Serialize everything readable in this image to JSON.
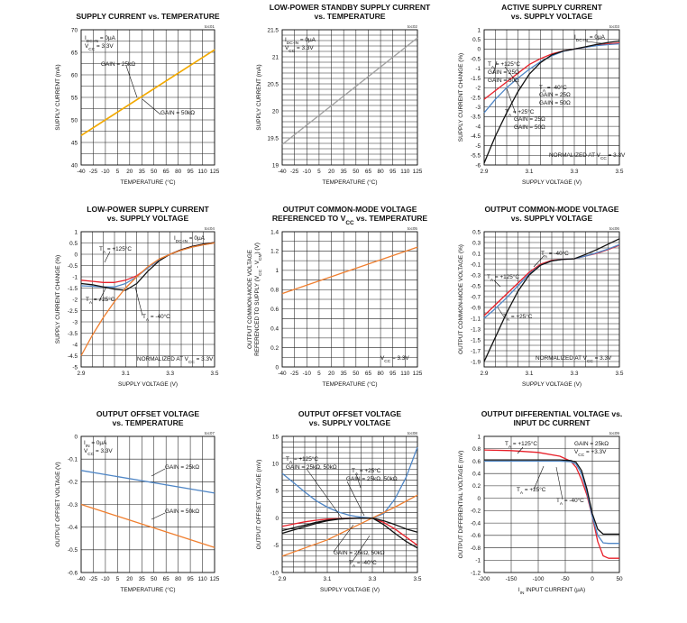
{
  "chart_data": [
    {
      "type": "line",
      "code": "toc01",
      "title": [
        "SUPPLY CURRENT vs. TEMPERATURE"
      ],
      "xlabel": "TEMPERATURE (°C)",
      "ylabel": "SUPPLY CURRENT (mA)",
      "xlim": [
        -40,
        125
      ],
      "ylim": [
        40,
        70
      ],
      "xticks": [
        -40,
        -25,
        -10,
        5,
        20,
        35,
        50,
        65,
        80,
        95,
        110,
        125
      ],
      "yticks": [
        40,
        45,
        50,
        55,
        60,
        65,
        70
      ],
      "annotations": [
        "I_DC-IN = 0µA",
        "V_CC = 3.3V",
        "GAIN = 25kΩ",
        "GAIN = 50kΩ"
      ],
      "series": [
        {
          "name": "GAIN = 25kΩ",
          "color": "#f2a900",
          "x": [
            -40,
            125
          ],
          "y": [
            46.5,
            65.5
          ]
        },
        {
          "name": "GAIN = 50kΩ",
          "color": "#f2a900",
          "x": [
            -40,
            125
          ],
          "y": [
            46.6,
            65.6
          ]
        }
      ]
    },
    {
      "type": "line",
      "code": "toc02",
      "title": [
        "LOW-POWER STANDBY SUPPLY CURRENT",
        "vs. TEMPERATURE"
      ],
      "xlabel": "TEMPERATURE (°C)",
      "ylabel": "SUPPLY CURRENT (mA)",
      "xlim": [
        -40,
        125
      ],
      "ylim": [
        19,
        21.5
      ],
      "xticks": [
        -40,
        -25,
        -10,
        5,
        20,
        35,
        50,
        65,
        80,
        95,
        110,
        125
      ],
      "yticks": [
        19,
        19.5,
        20,
        20.5,
        21,
        21.5
      ],
      "annotations": [
        "I_DC-IN = 0µA",
        "V_CC = 3.3V"
      ],
      "series": [
        {
          "color": "#a0a0a0",
          "x": [
            -40,
            125
          ],
          "y": [
            19.38,
            21.35
          ]
        }
      ]
    },
    {
      "type": "line",
      "code": "toc03",
      "title": [
        "ACTIVE SUPPLY CURRENT",
        "vs. SUPPLY VOLTAGE"
      ],
      "xlabel": "SUPPLY VOLTAGE (V)",
      "ylabel": "SUPPLY CURRENT CHANGE (%)",
      "xlim": [
        2.9,
        3.5
      ],
      "ylim": [
        -6,
        1
      ],
      "xticks": [
        2.9,
        3.1,
        3.3,
        3.5
      ],
      "yticks": [
        1,
        0.5,
        0,
        -0.5,
        -1,
        -1.5,
        -2,
        -2.5,
        -3,
        -3.5,
        -4,
        -4.5,
        -5,
        -5.5,
        -6
      ],
      "annotations": [
        "T_A = +125°C",
        "GAIN = 25Ω",
        "GAIN = 50Ω",
        "I_DC-IN = 0µA",
        "T_A = -40°C",
        "GAIN = 25Ω",
        "GAIN = 50Ω",
        "T_A = +25°C",
        "GAIN = 25Ω",
        "GAIN = 50Ω",
        "NORMALIZED AT V_CC = 3.3V"
      ],
      "series": [
        {
          "name": "T_A = +125°C",
          "color": "#e8202a",
          "x": [
            2.9,
            2.95,
            3.0,
            3.05,
            3.1,
            3.15,
            3.2,
            3.25,
            3.3,
            3.35,
            3.4,
            3.45,
            3.5
          ],
          "y": [
            -2.6,
            -2.15,
            -1.7,
            -1.25,
            -0.8,
            -0.5,
            -0.25,
            -0.1,
            0,
            0.1,
            0.2,
            0.27,
            0.32
          ]
        },
        {
          "name": "T_A = +25°C",
          "color": "#4f86c6",
          "x": [
            2.9,
            2.95,
            3.0,
            3.05,
            3.1,
            3.15,
            3.2,
            3.25,
            3.3,
            3.35,
            3.4,
            3.45,
            3.5
          ],
          "y": [
            -3.3,
            -2.6,
            -2.0,
            -1.5,
            -1.05,
            -0.65,
            -0.35,
            -0.12,
            0,
            0.1,
            0.18,
            0.23,
            0.27
          ]
        },
        {
          "name": "T_A = -40°C",
          "color": "#111111",
          "x": [
            2.9,
            2.95,
            3.0,
            3.05,
            3.1,
            3.15,
            3.2,
            3.25,
            3.3,
            3.35,
            3.4,
            3.45,
            3.5
          ],
          "y": [
            -5.9,
            -4.5,
            -3.3,
            -2.2,
            -1.3,
            -0.7,
            -0.3,
            -0.1,
            0,
            0.12,
            0.24,
            0.34,
            0.42
          ]
        }
      ]
    },
    {
      "type": "line",
      "code": "toc04",
      "title": [
        "LOW-POWER SUPPLY CURRENT",
        "vs. SUPPLY VOLTAGE"
      ],
      "xlabel": "SUPPLY VOLTAGE (V)",
      "ylabel": "SUPPLY CURRENT CHANGE (%)",
      "xlim": [
        2.9,
        3.5
      ],
      "ylim": [
        -5,
        1
      ],
      "xticks": [
        2.9,
        3.1,
        3.3,
        3.5
      ],
      "yticks": [
        1,
        0.5,
        0,
        -0.5,
        -1,
        -1.5,
        -2,
        -2.5,
        -3,
        -3.5,
        -4,
        -4.5,
        -5
      ],
      "annotations": [
        "I_DC-IN = 0µA",
        "T_A = +125°C",
        "T_A = +25°C",
        "T_A = -40°C",
        "NORMALIZED AT V_CC = 3.3V"
      ],
      "series": [
        {
          "name": "T_A = +125°C",
          "color": "#e8202a",
          "x": [
            2.9,
            2.95,
            3.0,
            3.05,
            3.1,
            3.15,
            3.2,
            3.25,
            3.3,
            3.35,
            3.4,
            3.45,
            3.5
          ],
          "y": [
            -1.15,
            -1.2,
            -1.25,
            -1.25,
            -1.15,
            -0.95,
            -0.6,
            -0.25,
            0,
            0.2,
            0.35,
            0.45,
            0.52
          ]
        },
        {
          "name": "T_A = +25°C",
          "color": "#4f86c6",
          "x": [
            2.9,
            2.95,
            3.0,
            3.05,
            3.1,
            3.15,
            3.2,
            3.25,
            3.3,
            3.35,
            3.4,
            3.45,
            3.5
          ],
          "y": [
            -1.4,
            -1.42,
            -1.45,
            -1.45,
            -1.3,
            -1.0,
            -0.6,
            -0.25,
            0,
            0.18,
            0.32,
            0.42,
            0.5
          ]
        },
        {
          "name": "T_A = -40°C",
          "color": "#111111",
          "x": [
            2.9,
            2.95,
            3.0,
            3.05,
            3.1,
            3.15,
            3.2,
            3.25,
            3.3,
            3.35,
            3.4,
            3.45,
            3.5
          ],
          "y": [
            -1.3,
            -1.35,
            -1.45,
            -1.55,
            -1.6,
            -1.3,
            -0.75,
            -0.3,
            0,
            0.2,
            0.35,
            0.45,
            0.52
          ]
        },
        {
          "color": "#f07f2f",
          "x": [
            2.9,
            2.95,
            3.0,
            3.05,
            3.1,
            3.15,
            3.2,
            3.25,
            3.3,
            3.35,
            3.4,
            3.45,
            3.5
          ],
          "y": [
            -4.5,
            -3.6,
            -2.8,
            -2.1,
            -1.5,
            -1.0,
            -0.55,
            -0.22,
            0,
            0.18,
            0.32,
            0.42,
            0.5
          ]
        }
      ]
    },
    {
      "type": "line",
      "code": "toc05",
      "title": [
        "OUTPUT COMMON-MODE VOLTAGE",
        "REFERENCED TO V_CC vs. TEMPERATURE"
      ],
      "xlabel": "TEMPERATURE (°C)",
      "ylabel": [
        "OUTPUT COMMON-MODE VOLTAGE",
        "REFERENCED TO SUPPLY (V_CC - V_CM) (V)"
      ],
      "xlim": [
        -40,
        125
      ],
      "ylim": [
        0,
        1.4
      ],
      "xticks": [
        -40,
        -25,
        -10,
        5,
        20,
        35,
        50,
        65,
        80,
        95,
        110,
        125
      ],
      "yticks": [
        0,
        0.2,
        0.4,
        0.6,
        0.8,
        1,
        1.2,
        1.4
      ],
      "annotations": [
        "V_CC = 3.3V"
      ],
      "series": [
        {
          "color": "#f07f2f",
          "x": [
            -40,
            125
          ],
          "y": [
            0.76,
            1.24
          ]
        }
      ]
    },
    {
      "type": "line",
      "code": "toc06",
      "title": [
        "OUTPUT COMMON-MODE VOLTAGE",
        "vs. SUPPLY VOLTAGE"
      ],
      "xlabel": "SUPPLY VOLTAGE (V)",
      "ylabel": "OUTPUT COMMON-MODE VOLTAGE (%)",
      "xlim": [
        2.9,
        3.5
      ],
      "ylim": [
        -2,
        0.5
      ],
      "xticks": [
        2.9,
        3.1,
        3.3,
        3.5
      ],
      "yticks": [
        0.5,
        0.3,
        0.1,
        -0.1,
        -0.3,
        -0.5,
        -0.7,
        -0.9,
        -1.1,
        -1.3,
        -1.5,
        -1.7,
        -1.9
      ],
      "annotations": [
        "T_A = -40°C",
        "T_A = +125°C",
        "T_A = +25°C",
        "NORMALIZED AT V_CC = 3.3V"
      ],
      "series": [
        {
          "name": "T_A = +125°C",
          "color": "#e8202a",
          "x": [
            2.9,
            2.95,
            3.0,
            3.05,
            3.1,
            3.15,
            3.2,
            3.25,
            3.3,
            3.35,
            3.4,
            3.45,
            3.5
          ],
          "y": [
            -1.05,
            -0.85,
            -0.65,
            -0.45,
            -0.25,
            -0.1,
            -0.03,
            -0.01,
            0,
            0.05,
            0.1,
            0.17,
            0.25
          ]
        },
        {
          "name": "T_A = +25°C",
          "color": "#4f86c6",
          "x": [
            2.9,
            2.95,
            3.0,
            3.05,
            3.1,
            3.15,
            3.2,
            3.25,
            3.3,
            3.35,
            3.4,
            3.45,
            3.5
          ],
          "y": [
            -1.1,
            -0.92,
            -0.72,
            -0.5,
            -0.28,
            -0.12,
            -0.04,
            -0.01,
            0,
            0.05,
            0.11,
            0.18,
            0.26
          ]
        },
        {
          "name": "T_A = -40°C",
          "color": "#111111",
          "x": [
            2.9,
            2.95,
            3.0,
            3.05,
            3.1,
            3.15,
            3.2,
            3.25,
            3.3,
            3.35,
            3.4,
            3.45,
            3.5
          ],
          "y": [
            -1.9,
            -1.45,
            -1.0,
            -0.6,
            -0.3,
            -0.12,
            -0.04,
            -0.01,
            0,
            0.08,
            0.17,
            0.27,
            0.37
          ]
        }
      ]
    },
    {
      "type": "line",
      "code": "toc07",
      "title": [
        "OUTPUT OFFSET VOLTAGE",
        "vs. TEMPERATURE"
      ],
      "xlabel": "TEMPERATURE (°C)",
      "ylabel": "OUTPUT OFFSET VOLTAGE (V)",
      "xlim": [
        -40,
        125
      ],
      "ylim": [
        -0.6,
        0
      ],
      "xticks": [
        -40,
        -25,
        -10,
        5,
        20,
        35,
        50,
        65,
        80,
        95,
        110,
        125
      ],
      "yticks": [
        0,
        -0.1,
        -0.2,
        -0.3,
        -0.4,
        -0.5,
        -0.6
      ],
      "annotations": [
        "I_IN = 0µA",
        "V_CC = 3.3V",
        "GAIN = 25kΩ",
        "GAIN = 50kΩ"
      ],
      "series": [
        {
          "name": "GAIN = 25kΩ",
          "color": "#4f86c6",
          "x": [
            -40,
            125
          ],
          "y": [
            -0.15,
            -0.25
          ]
        },
        {
          "name": "GAIN = 50kΩ",
          "color": "#f07f2f",
          "x": [
            -40,
            125
          ],
          "y": [
            -0.3,
            -0.49
          ]
        }
      ]
    },
    {
      "type": "line",
      "code": "toc08",
      "title": [
        "OUTPUT OFFSET VOLTAGE",
        "vs. SUPPLY VOLTAGE"
      ],
      "xlabel": "SUPPLY VOLTAGE (V)",
      "ylabel": "OUTPUT OFFSET VOLTAGE (mV)",
      "xlim": [
        2.9,
        3.5
      ],
      "ylim": [
        -10,
        15
      ],
      "xticks": [
        2.9,
        3.1,
        3.3,
        3.5
      ],
      "yticks": [
        15,
        10,
        5,
        0,
        -5,
        -10
      ],
      "annotations": [
        "T_A = +125°C",
        "GAIN = 25kΩ, 50kΩ",
        "T_A = +25°C",
        "GAIN = 25kΩ, 50kΩ",
        "GAIN = 25kΩ, 50kΩ",
        "T_A = -40°C"
      ],
      "series": [
        {
          "color": "#4f86c6",
          "x": [
            2.9,
            2.95,
            3.0,
            3.05,
            3.1,
            3.15,
            3.2,
            3.25,
            3.3,
            3.35,
            3.4,
            3.45,
            3.5
          ],
          "y": [
            8.2,
            6.5,
            4.8,
            3.2,
            2.0,
            1.1,
            0.5,
            0.15,
            0,
            0.8,
            3.5,
            7.5,
            13
          ]
        },
        {
          "color": "#f07f2f",
          "x": [
            2.9,
            3.0,
            3.1,
            3.2,
            3.3,
            3.4,
            3.5
          ],
          "y": [
            -7.0,
            -5.5,
            -4.0,
            -2.0,
            0,
            2.0,
            4.2
          ]
        },
        {
          "color": "#e8202a",
          "x": [
            2.9,
            2.95,
            3.0,
            3.05,
            3.1,
            3.15,
            3.2,
            3.25,
            3.3,
            3.35,
            3.4,
            3.45,
            3.5
          ],
          "y": [
            -1.5,
            -1.1,
            -0.7,
            -0.4,
            -0.2,
            -0.1,
            -0.05,
            -0.02,
            0,
            -0.8,
            -2.0,
            -3.5,
            -5.0
          ]
        },
        {
          "color": "#111111",
          "x": [
            2.9,
            2.95,
            3.0,
            3.05,
            3.1,
            3.15,
            3.2,
            3.25,
            3.3,
            3.35,
            3.4,
            3.45,
            3.5
          ],
          "y": [
            -2.8,
            -2.2,
            -1.6,
            -1.0,
            -0.5,
            -0.2,
            -0.08,
            -0.02,
            0,
            -1.2,
            -2.8,
            -4.3,
            -5.5
          ]
        },
        {
          "color": "#111111",
          "x": [
            2.9,
            2.95,
            3.0,
            3.05,
            3.1,
            3.15,
            3.2,
            3.25,
            3.3,
            3.35,
            3.4,
            3.45,
            3.5
          ],
          "y": [
            -2.3,
            -1.8,
            -1.3,
            -0.8,
            -0.4,
            -0.15,
            -0.05,
            -0.01,
            0,
            -0.5,
            -1.2,
            -2.0,
            -2.6
          ]
        }
      ]
    },
    {
      "type": "line",
      "code": "toc09",
      "title": [
        "OUTPUT DIFFERENTIAL VOLTAGE vs.",
        "INPUT DC CURRENT"
      ],
      "xlabel": "I_IN INPUT CURRENT (µA)",
      "ylabel": "OUTPUT DIFFERENTIAL VOLTAGE (mV)",
      "xlim": [
        -200,
        50
      ],
      "ylim": [
        -1.2,
        1
      ],
      "xticks": [
        -200,
        -150,
        -100,
        -50,
        0,
        50
      ],
      "yticks": [
        1,
        0.8,
        0.6,
        0.4,
        0.2,
        0,
        -0.2,
        -0.4,
        -0.6,
        -0.8,
        -1,
        -1.2
      ],
      "annotations": [
        "T_A = +125°C",
        "GAIN = 25kΩ",
        "V_CC = +3.3V",
        "T_A = +25°C",
        "T_A = -40°C"
      ],
      "series": [
        {
          "name": "T_A = +125°C",
          "color": "#e8202a",
          "x": [
            -200,
            -150,
            -100,
            -60,
            -40,
            -30,
            -20,
            -10,
            0,
            10,
            20,
            30,
            50
          ],
          "y": [
            0.78,
            0.77,
            0.74,
            0.68,
            0.6,
            0.5,
            0.3,
            0.05,
            -0.3,
            -0.7,
            -0.93,
            -0.97,
            -0.97
          ]
        },
        {
          "name": "T_A = +25°C",
          "color": "#4f86c6",
          "x": [
            -200,
            -150,
            -100,
            -60,
            -40,
            -30,
            -20,
            -10,
            0,
            10,
            20,
            30,
            50
          ],
          "y": [
            0.6,
            0.6,
            0.6,
            0.6,
            0.59,
            0.55,
            0.4,
            0.1,
            -0.3,
            -0.6,
            -0.72,
            -0.73,
            -0.73
          ]
        },
        {
          "name": "T_A = -40°C",
          "color": "#111111",
          "x": [
            -200,
            -150,
            -100,
            -60,
            -40,
            -30,
            -20,
            -10,
            0,
            10,
            20,
            30,
            50
          ],
          "y": [
            0.62,
            0.62,
            0.62,
            0.62,
            0.61,
            0.58,
            0.45,
            0.15,
            -0.25,
            -0.5,
            -0.58,
            -0.58,
            -0.58
          ]
        }
      ]
    }
  ]
}
